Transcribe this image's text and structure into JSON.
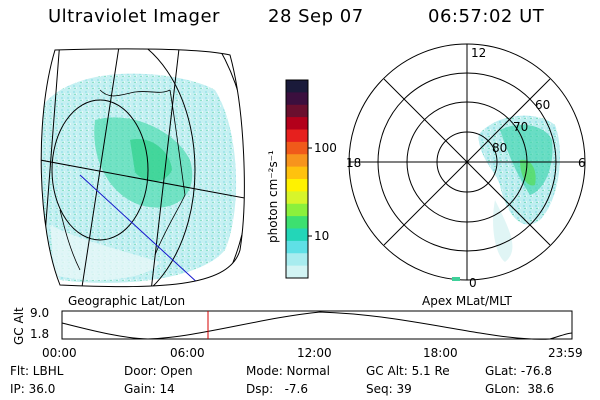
{
  "header": {
    "title": "Ultraviolet Imager",
    "date": "28 Sep 07",
    "time": "06:57:02 UT"
  },
  "left_map": {
    "label": "Geographic Lat/Lon"
  },
  "right_map": {
    "label": "Apex MLat/MLT",
    "mlt_labels": {
      "top": "12",
      "left": "18",
      "right": "6",
      "bottom": "0"
    },
    "lat_labels": [
      "60",
      "70",
      "80"
    ]
  },
  "colorbar": {
    "title_html": "photon cm⁻²s⁻¹",
    "ticks": [
      "100",
      "10"
    ],
    "colors": [
      "#1a1a3a",
      "#3b0f3e",
      "#6a0f2e",
      "#b3001b",
      "#e6201e",
      "#f05a1a",
      "#f7941d",
      "#ffc20e",
      "#fff200",
      "#d7f52b",
      "#8bf03c",
      "#3de070",
      "#23d6b8",
      "#5fe0e6",
      "#a8ecef",
      "#d3f4f4"
    ]
  },
  "timeline": {
    "y_label": "GC Alt",
    "y_ticks": [
      "9.0",
      "1.8"
    ],
    "x_ticks": [
      "00:00",
      "06:00",
      "12:00",
      "18:00",
      "23:59"
    ],
    "marker_color": "#d40000"
  },
  "info": {
    "flt": "Flt: LBHL",
    "ip": "IP: 36.0",
    "door": "Door: Open",
    "gain": "Gain: 14",
    "mode": "Mode: Normal",
    "dsp": "Dsp:   -7.6",
    "gcalt": "GC Alt: 5.1 Re",
    "seq": "Seq: 39",
    "glat": "GLat: -76.8",
    "glon": "GLon:  38.6"
  }
}
